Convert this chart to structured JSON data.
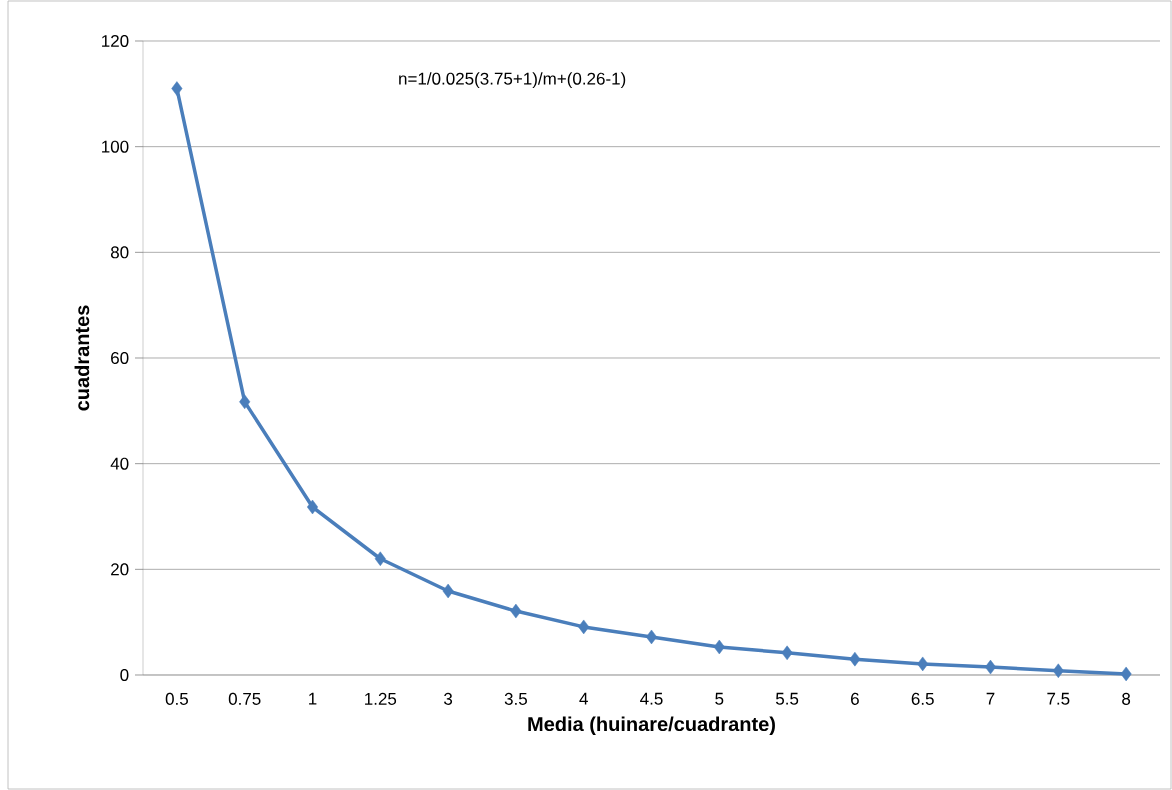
{
  "chart_data": {
    "type": "line",
    "xlabel": "Media (huinare/cuadrante)",
    "ylabel": "cuadrantes",
    "annotations": [
      "n=1/0.025(3.75+1)/m+(0.26-1)"
    ],
    "categories": [
      "0.5",
      "0.75",
      "1",
      "1.25",
      "3",
      "3.5",
      "4",
      "4.5",
      "5",
      "5.5",
      "6",
      "6.5",
      "7",
      "7.5",
      "8"
    ],
    "series": [
      {
        "color": "#4a7ebb",
        "values": [
          111,
          51.7,
          31.8,
          22.0,
          15.9,
          12.1,
          9.1,
          7.2,
          5.3,
          4.2,
          3.0,
          2.1,
          1.5,
          0.8,
          0.2
        ]
      }
    ],
    "ylim": [
      0,
      120
    ],
    "yticks": [
      0,
      20,
      40,
      60,
      80,
      100,
      120
    ],
    "grid": "y",
    "marker": "diamond",
    "line_style": "solid"
  }
}
